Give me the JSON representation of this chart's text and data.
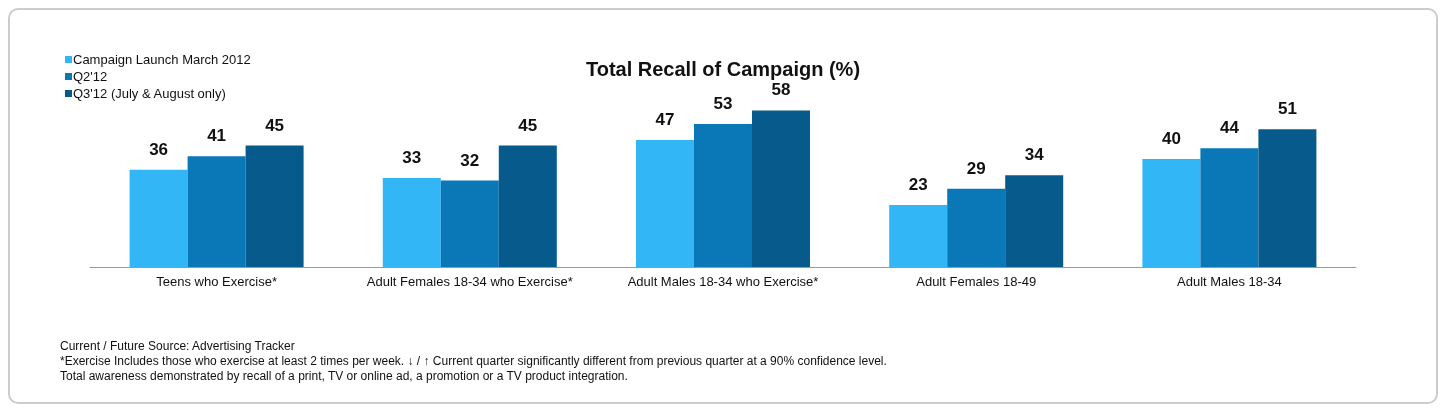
{
  "chart_data": {
    "type": "bar",
    "title": "Total Recall of Campaign (%)",
    "categories": [
      "Teens who Exercise*",
      "Adult Females 18-34 who Exercise*",
      "Adult Males 18-34 who Exercise*",
      "Adult Females 18-49",
      "Adult Males 18-34"
    ],
    "series": [
      {
        "name": "Campaign Launch March 2012",
        "color": "#33b6f6",
        "values": [
          36,
          33,
          47,
          23,
          40
        ]
      },
      {
        "name": "Q2'12",
        "color": "#0a77b7",
        "values": [
          41,
          32,
          53,
          29,
          44
        ]
      },
      {
        "name": "Q3'12 (July & August only)",
        "color": "#065b8c",
        "values": [
          45,
          45,
          58,
          34,
          51
        ]
      }
    ],
    "data_labels": true,
    "legend": "top left",
    "marker": "square",
    "annotations": [
      "Current / Future Source: Advertising Tracker",
      "*Exercise Includes those who exercise at least 2 times per week. ↓ / ↑ Current quarter significantly different from previous quarter at a 90% confidence level.",
      "Total awareness demonstrated by recall of a print, TV or online ad, a promotion or a TV product integration."
    ]
  }
}
